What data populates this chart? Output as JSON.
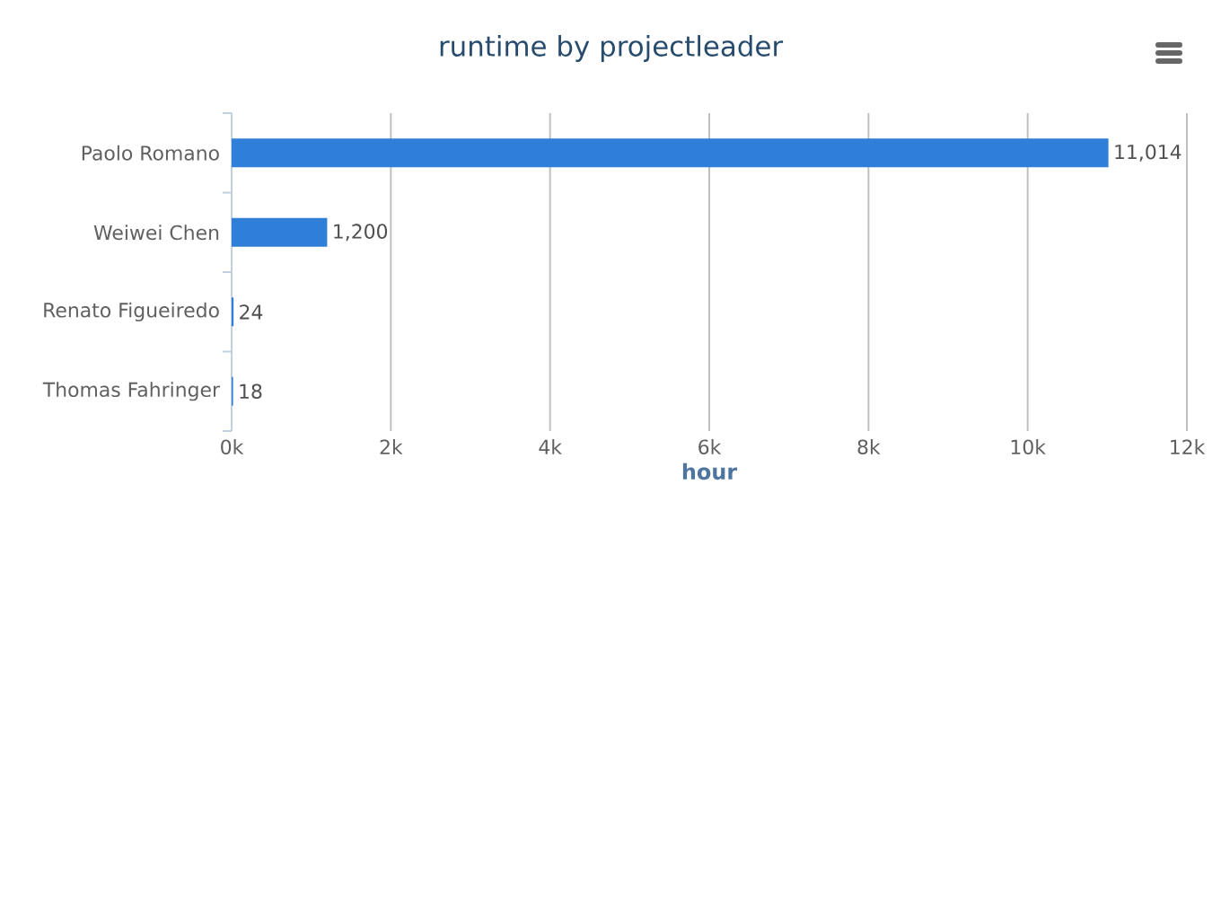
{
  "chart_data": {
    "type": "bar",
    "orientation": "horizontal",
    "title": "runtime by projectleader",
    "xlabel": "hour",
    "categories": [
      "Paolo Romano",
      "Weiwei Chen",
      "Renato Figueiredo",
      "Thomas Fahringer"
    ],
    "values": [
      11014,
      1200,
      24,
      18
    ],
    "value_labels": [
      "11,014",
      "1,200",
      "24",
      "18"
    ],
    "color": "#2f7ed8",
    "xlim": [
      0,
      12000
    ],
    "xticks": [
      {
        "value": 0,
        "label": "0k"
      },
      {
        "value": 2000,
        "label": "2k"
      },
      {
        "value": 4000,
        "label": "4k"
      },
      {
        "value": 6000,
        "label": "6k"
      },
      {
        "value": 8000,
        "label": "8k"
      },
      {
        "value": 10000,
        "label": "10k"
      },
      {
        "value": 12000,
        "label": "12k"
      }
    ],
    "grid": "x"
  }
}
